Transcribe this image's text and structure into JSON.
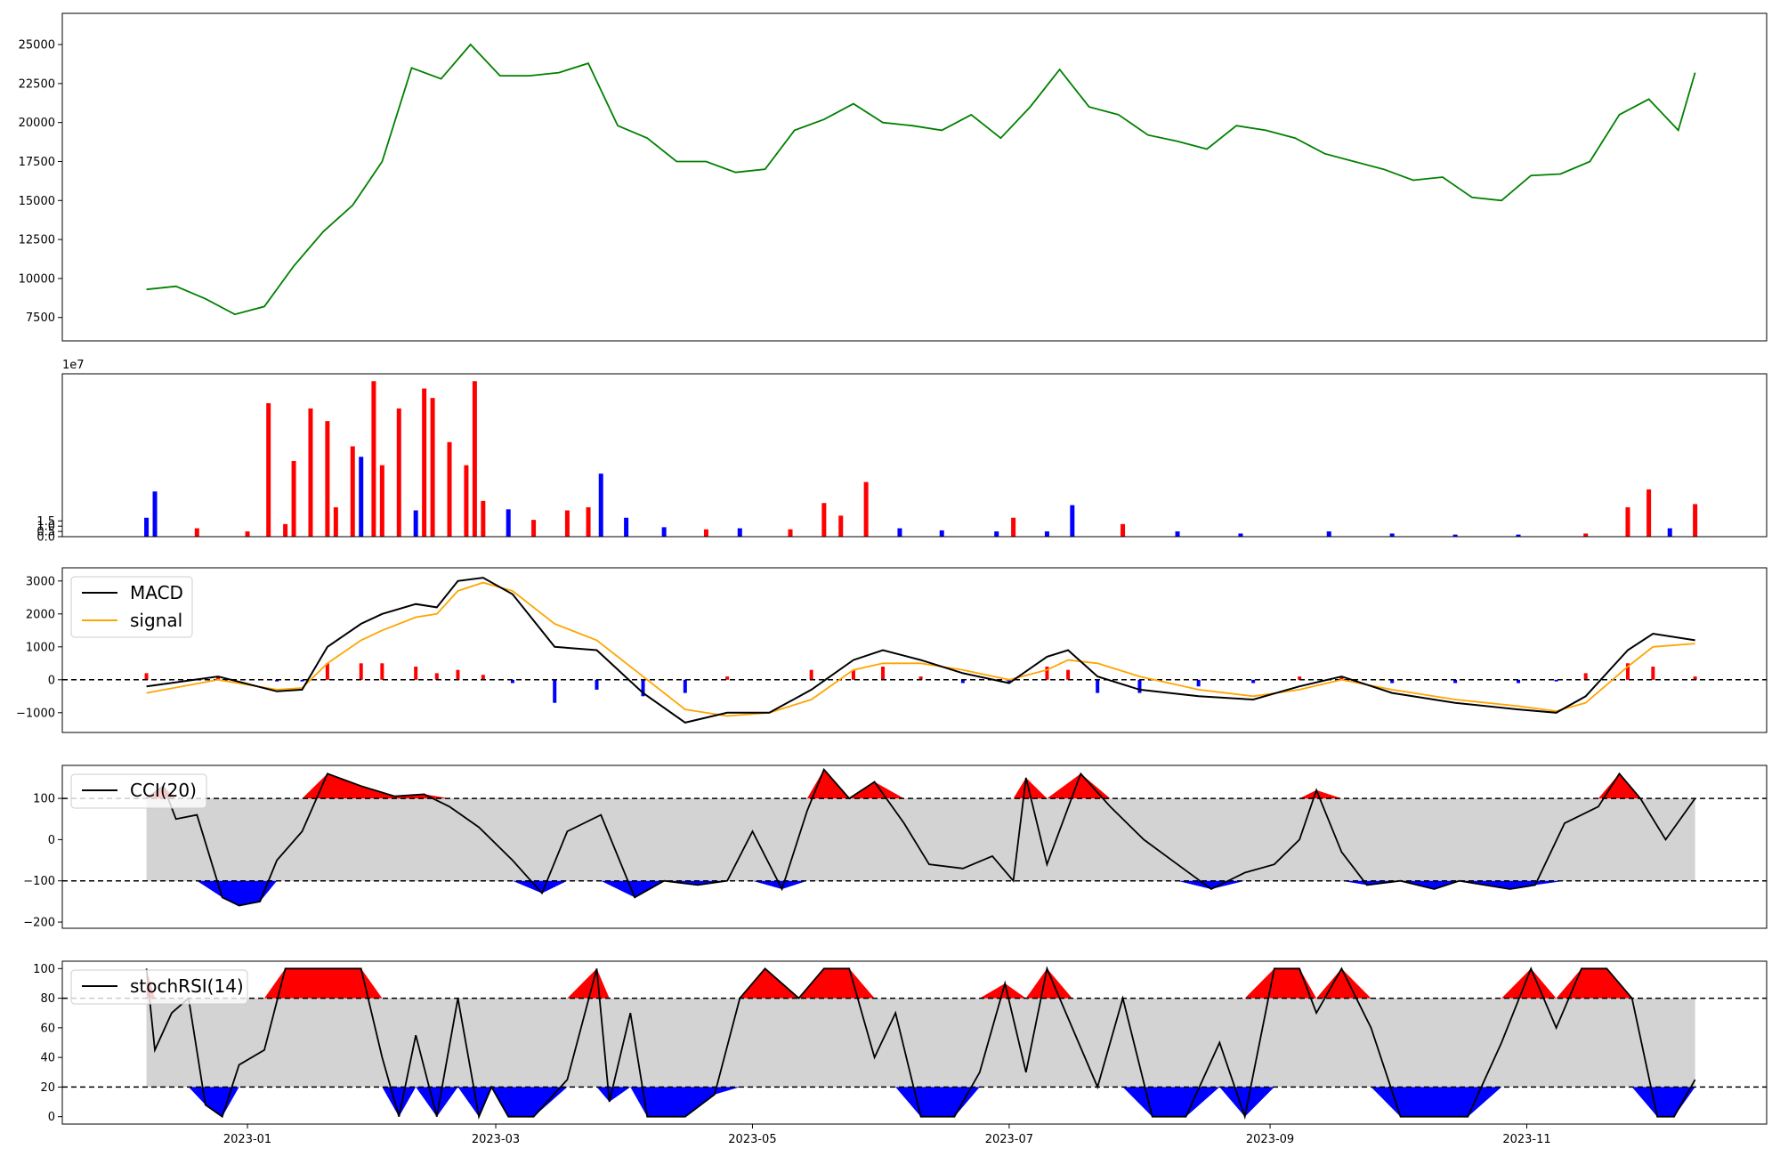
{
  "chart_data": [
    {
      "type": "line",
      "panel": "price",
      "ylim": [
        6000,
        27000
      ],
      "yticks": [
        "7500",
        "10000",
        "12500",
        "15000",
        "17500",
        "20000",
        "22500",
        "25000"
      ],
      "colors": {
        "line": "#008000"
      },
      "series": [
        {
          "x": [
            "2022-12-08",
            "2022-12-15",
            "2022-12-22",
            "2022-12-29",
            "2023-01-05",
            "2023-01-12",
            "2023-01-19",
            "2023-01-26",
            "2023-02-02",
            "2023-02-09",
            "2023-02-16",
            "2023-02-23",
            "2023-03-02",
            "2023-03-09",
            "2023-03-16",
            "2023-03-23",
            "2023-03-30",
            "2023-04-06",
            "2023-04-13",
            "2023-04-20",
            "2023-04-27",
            "2023-05-04",
            "2023-05-11",
            "2023-05-18",
            "2023-05-25",
            "2023-06-01",
            "2023-06-08",
            "2023-06-15",
            "2023-06-22",
            "2023-06-29",
            "2023-07-06",
            "2023-07-13",
            "2023-07-20",
            "2023-07-27",
            "2023-08-03",
            "2023-08-10",
            "2023-08-17",
            "2023-08-24",
            "2023-08-31",
            "2023-09-07",
            "2023-09-14",
            "2023-09-21",
            "2023-09-28",
            "2023-10-05",
            "2023-10-12",
            "2023-10-19",
            "2023-10-26",
            "2023-11-02",
            "2023-11-09",
            "2023-11-16",
            "2023-11-23",
            "2023-11-30",
            "2023-12-07",
            "2023-12-11"
          ],
          "values": [
            9300,
            9500,
            8700,
            7700,
            8200,
            10800,
            13000,
            14700,
            17500,
            23500,
            22800,
            25000,
            23000,
            23000,
            23200,
            23800,
            19800,
            19000,
            17500,
            17500,
            16800,
            17000,
            19500,
            20200,
            21200,
            20000,
            19800,
            19500,
            20500,
            19000,
            21000,
            23400,
            21000,
            20500,
            19200,
            18800,
            18300,
            19800,
            19500,
            19000,
            18000,
            17500,
            17000,
            16300,
            16500,
            15200,
            15000,
            16600,
            16700,
            17500,
            20500,
            21500,
            19500,
            23200
          ]
        }
      ]
    },
    {
      "type": "bar",
      "panel": "volume",
      "offset_text": "1e7",
      "ylim": [
        0,
        15.5
      ],
      "yticks": [
        "0.0",
        "0.5",
        "1.0",
        "1.5"
      ],
      "colors": {
        "up": "#ff0000",
        "down": "#0000ff"
      },
      "series": [
        {
          "x": [
            "2022-12-08",
            "2022-12-10",
            "2022-12-20",
            "2023-01-01",
            "2023-01-06",
            "2023-01-10",
            "2023-01-12",
            "2023-01-16",
            "2023-01-20",
            "2023-01-22",
            "2023-01-26",
            "2023-01-28",
            "2023-01-31",
            "2023-02-02",
            "2023-02-06",
            "2023-02-10",
            "2023-02-12",
            "2023-02-14",
            "2023-02-18",
            "2023-02-22",
            "2023-02-24",
            "2023-02-26",
            "2023-03-04",
            "2023-03-10",
            "2023-03-18",
            "2023-03-23",
            "2023-03-26",
            "2023-04-01",
            "2023-04-10",
            "2023-04-20",
            "2023-04-28",
            "2023-05-10",
            "2023-05-18",
            "2023-05-22",
            "2023-05-28",
            "2023-06-05",
            "2023-06-15",
            "2023-06-28",
            "2023-07-02",
            "2023-07-10",
            "2023-07-16",
            "2023-07-28",
            "2023-08-10",
            "2023-08-25",
            "2023-09-15",
            "2023-09-30",
            "2023-10-15",
            "2023-10-30",
            "2023-11-15",
            "2023-11-25",
            "2023-11-30",
            "2023-12-05",
            "2023-12-11"
          ],
          "values": [
            1.8,
            4.3,
            0.8,
            0.5,
            12.7,
            1.2,
            7.2,
            12.2,
            11.0,
            2.8,
            8.6,
            7.6,
            14.8,
            6.8,
            12.2,
            2.5,
            14.1,
            13.2,
            9.0,
            6.8,
            14.8,
            3.4,
            2.6,
            1.6,
            2.5,
            2.8,
            6.0,
            1.8,
            0.9,
            0.7,
            0.8,
            0.7,
            3.2,
            2.0,
            5.2,
            0.8,
            0.6,
            0.5,
            1.8,
            0.5,
            3.0,
            1.2,
            0.5,
            0.3,
            0.5,
            0.3,
            0.2,
            0.2,
            0.3,
            2.8,
            4.5,
            0.8,
            3.1
          ],
          "up": [
            false,
            false,
            true,
            true,
            true,
            true,
            true,
            true,
            true,
            true,
            true,
            false,
            true,
            true,
            true,
            false,
            true,
            true,
            true,
            true,
            true,
            true,
            false,
            true,
            true,
            true,
            false,
            false,
            false,
            true,
            false,
            true,
            true,
            true,
            true,
            false,
            false,
            false,
            true,
            false,
            false,
            true,
            false,
            false,
            false,
            false,
            false,
            false,
            true,
            true,
            true,
            false,
            true
          ]
        }
      ]
    },
    {
      "type": "line",
      "panel": "macd",
      "ylim": [
        -1600,
        3400
      ],
      "yticks": [
        "3000",
        "2000",
        "1000",
        "0",
        "−1000"
      ],
      "legend": [
        "MACD",
        "signal"
      ],
      "colors": {
        "MACD": "#000000",
        "signal": "#ffa500",
        "hist_pos": "#ff0000",
        "hist_neg": "#0000ff"
      },
      "series": [
        {
          "name": "MACD",
          "x": [
            "2022-12-08",
            "2022-12-25",
            "2023-01-08",
            "2023-01-14",
            "2023-01-20",
            "2023-01-28",
            "2023-02-02",
            "2023-02-10",
            "2023-02-15",
            "2023-02-20",
            "2023-02-26",
            "2023-03-05",
            "2023-03-15",
            "2023-03-25",
            "2023-04-05",
            "2023-04-15",
            "2023-04-25",
            "2023-05-05",
            "2023-05-15",
            "2023-05-25",
            "2023-06-01",
            "2023-06-10",
            "2023-06-20",
            "2023-07-01",
            "2023-07-10",
            "2023-07-15",
            "2023-07-22",
            "2023-08-01",
            "2023-08-15",
            "2023-08-28",
            "2023-09-08",
            "2023-09-18",
            "2023-09-30",
            "2023-10-15",
            "2023-10-30",
            "2023-11-08",
            "2023-11-15",
            "2023-11-25",
            "2023-12-01",
            "2023-12-11"
          ],
          "values": [
            -200,
            100,
            -350,
            -300,
            1000,
            1700,
            2000,
            2300,
            2200,
            3000,
            3100,
            2600,
            1000,
            900,
            -400,
            -1300,
            -1000,
            -1000,
            -300,
            600,
            900,
            600,
            200,
            -100,
            700,
            900,
            100,
            -300,
            -500,
            -600,
            -200,
            100,
            -400,
            -700,
            -900,
            -1000,
            -500,
            900,
            1400,
            1200
          ]
        },
        {
          "name": "signal",
          "x": [
            "2022-12-08",
            "2022-12-25",
            "2023-01-08",
            "2023-01-14",
            "2023-01-20",
            "2023-01-28",
            "2023-02-02",
            "2023-02-10",
            "2023-02-15",
            "2023-02-20",
            "2023-02-26",
            "2023-03-05",
            "2023-03-15",
            "2023-03-25",
            "2023-04-05",
            "2023-04-15",
            "2023-04-25",
            "2023-05-05",
            "2023-05-15",
            "2023-05-25",
            "2023-06-01",
            "2023-06-10",
            "2023-06-20",
            "2023-07-01",
            "2023-07-10",
            "2023-07-15",
            "2023-07-22",
            "2023-08-01",
            "2023-08-15",
            "2023-08-28",
            "2023-09-08",
            "2023-09-18",
            "2023-09-30",
            "2023-10-15",
            "2023-10-30",
            "2023-11-08",
            "2023-11-15",
            "2023-11-25",
            "2023-12-01",
            "2023-12-11"
          ],
          "values": [
            -400,
            0,
            -300,
            -250,
            500,
            1200,
            1500,
            1900,
            2000,
            2700,
            2950,
            2700,
            1700,
            1200,
            100,
            -900,
            -1100,
            -1000,
            -600,
            300,
            500,
            500,
            300,
            0,
            300,
            600,
            500,
            100,
            -300,
            -500,
            -300,
            0,
            -300,
            -600,
            -800,
            -950,
            -700,
            400,
            1000,
            1100
          ]
        }
      ]
    },
    {
      "type": "line",
      "panel": "cci",
      "ylim": [
        -215,
        180
      ],
      "yticks": [
        "100",
        "0",
        "−100",
        "−200"
      ],
      "thresholds": [
        100,
        -100
      ],
      "legend": [
        "CCI(20)"
      ],
      "colors": {
        "line": "#000000",
        "over": "#ff0000",
        "under": "#0000ff",
        "band": "#d3d3d3"
      },
      "series": [
        {
          "name": "CCI(20)",
          "x": [
            "2022-12-08",
            "2022-12-12",
            "2022-12-15",
            "2022-12-20",
            "2022-12-26",
            "2022-12-30",
            "2023-01-04",
            "2023-01-08",
            "2023-01-14",
            "2023-01-20",
            "2023-01-28",
            "2023-02-05",
            "2023-02-12",
            "2023-02-18",
            "2023-02-25",
            "2023-03-05",
            "2023-03-12",
            "2023-03-18",
            "2023-03-26",
            "2023-04-03",
            "2023-04-10",
            "2023-04-18",
            "2023-04-25",
            "2023-05-01",
            "2023-05-08",
            "2023-05-14",
            "2023-05-18",
            "2023-05-24",
            "2023-05-30",
            "2023-06-06",
            "2023-06-12",
            "2023-06-20",
            "2023-06-27",
            "2023-07-02",
            "2023-07-05",
            "2023-07-10",
            "2023-07-18",
            "2023-07-25",
            "2023-08-02",
            "2023-08-10",
            "2023-08-18",
            "2023-08-26",
            "2023-09-02",
            "2023-09-08",
            "2023-09-12",
            "2023-09-18",
            "2023-09-24",
            "2023-10-02",
            "2023-10-10",
            "2023-10-16",
            "2023-10-22",
            "2023-10-28",
            "2023-11-03",
            "2023-11-10",
            "2023-11-18",
            "2023-11-23",
            "2023-11-28",
            "2023-12-04",
            "2023-12-11"
          ],
          "values": [
            100,
            130,
            50,
            60,
            -140,
            -160,
            -150,
            -50,
            20,
            160,
            130,
            105,
            110,
            80,
            30,
            -50,
            -130,
            20,
            60,
            -140,
            -100,
            -110,
            -100,
            20,
            -120,
            70,
            170,
            100,
            140,
            40,
            -60,
            -70,
            -40,
            -100,
            150,
            -60,
            160,
            80,
            0,
            -60,
            -120,
            -80,
            -60,
            0,
            120,
            -30,
            -110,
            -100,
            -120,
            -100,
            -110,
            -120,
            -110,
            40,
            80,
            160,
            100,
            0,
            100
          ]
        }
      ]
    },
    {
      "type": "line",
      "panel": "stochRSI",
      "ylim": [
        -5,
        105
      ],
      "yticks": [
        "100",
        "80",
        "60",
        "40",
        "20",
        "0"
      ],
      "thresholds": [
        80,
        20
      ],
      "legend": [
        "stochRSI(14)"
      ],
      "colors": {
        "line": "#000000",
        "over": "#ff0000",
        "under": "#0000ff",
        "band": "#d3d3d3"
      },
      "series": [
        {
          "name": "stochRSI(14)",
          "x": [
            "2022-12-08",
            "2022-12-10",
            "2022-12-14",
            "2022-12-18",
            "2022-12-22",
            "2022-12-26",
            "2022-12-30",
            "2023-01-05",
            "2023-01-10",
            "2023-01-14",
            "2023-01-20",
            "2023-01-28",
            "2023-02-02",
            "2023-02-06",
            "2023-02-10",
            "2023-02-15",
            "2023-02-20",
            "2023-02-25",
            "2023-02-28",
            "2023-03-04",
            "2023-03-10",
            "2023-03-18",
            "2023-03-25",
            "2023-03-28",
            "2023-04-02",
            "2023-04-06",
            "2023-04-15",
            "2023-04-22",
            "2023-04-28",
            "2023-05-04",
            "2023-05-12",
            "2023-05-18",
            "2023-05-24",
            "2023-05-30",
            "2023-06-04",
            "2023-06-10",
            "2023-06-18",
            "2023-06-24",
            "2023-06-30",
            "2023-07-05",
            "2023-07-10",
            "2023-07-16",
            "2023-07-22",
            "2023-07-28",
            "2023-08-04",
            "2023-08-12",
            "2023-08-20",
            "2023-08-26",
            "2023-09-02",
            "2023-09-08",
            "2023-09-12",
            "2023-09-18",
            "2023-09-25",
            "2023-10-02",
            "2023-10-10",
            "2023-10-18",
            "2023-10-26",
            "2023-11-02",
            "2023-11-08",
            "2023-11-14",
            "2023-11-20",
            "2023-11-26",
            "2023-12-02",
            "2023-12-06",
            "2023-12-11"
          ],
          "values": [
            100,
            45,
            70,
            80,
            8,
            0,
            35,
            45,
            100,
            100,
            100,
            100,
            40,
            0,
            55,
            0,
            80,
            0,
            20,
            0,
            0,
            25,
            100,
            10,
            70,
            0,
            0,
            15,
            80,
            100,
            80,
            100,
            100,
            40,
            70,
            0,
            0,
            30,
            90,
            30,
            100,
            60,
            20,
            80,
            0,
            0,
            50,
            0,
            100,
            100,
            70,
            100,
            60,
            0,
            0,
            0,
            50,
            100,
            60,
            100,
            100,
            80,
            0,
            0,
            25
          ]
        }
      ]
    }
  ],
  "xaxis": {
    "ticks": [
      "2023-01",
      "2023-03",
      "2023-05",
      "2023-07",
      "2023-09",
      "2023-11"
    ]
  }
}
